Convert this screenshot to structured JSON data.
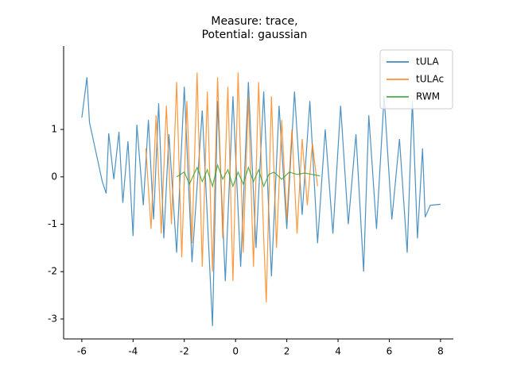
{
  "chart_data": {
    "type": "line",
    "title": [
      "Measure: trace,",
      "Potential: gaussian"
    ],
    "xlim": [
      -6.71,
      8.5
    ],
    "ylim": [
      -3.42,
      2.76
    ],
    "xticks": [
      -6,
      -4,
      -2,
      0,
      2,
      4,
      6,
      8
    ],
    "yticks": [
      -3,
      -2,
      -1,
      0,
      1
    ],
    "legend": "upper right",
    "series": [
      {
        "name": "tULA",
        "color": "#1f77b4",
        "x": [
          -6.0,
          -5.8,
          -5.7,
          -5.4,
          -5.2,
          -5.05,
          -4.95,
          -4.75,
          -4.55,
          -4.4,
          -4.2,
          -4.0,
          -3.85,
          -3.6,
          -3.4,
          -3.2,
          -3.0,
          -2.8,
          -2.6,
          -2.3,
          -2.0,
          -1.7,
          -1.3,
          -0.9,
          -0.7,
          -0.4,
          -0.1,
          0.2,
          0.5,
          0.8,
          1.1,
          1.4,
          1.7,
          2.0,
          2.3,
          2.6,
          2.9,
          3.2,
          3.5,
          3.8,
          4.1,
          4.4,
          4.7,
          5.0,
          5.2,
          5.5,
          5.8,
          6.1,
          6.4,
          6.7,
          6.9,
          7.1,
          7.3,
          7.4,
          7.6,
          8.0
        ],
        "values": [
          1.25,
          2.1,
          1.15,
          0.4,
          -0.1,
          -0.35,
          0.92,
          -0.05,
          0.95,
          -0.55,
          0.75,
          -1.25,
          1.1,
          -0.6,
          1.2,
          -0.9,
          1.55,
          -1.3,
          0.9,
          -1.6,
          1.9,
          -1.8,
          1.4,
          -3.15,
          1.6,
          -2.2,
          1.7,
          -1.9,
          2.0,
          -1.5,
          1.8,
          -2.1,
          1.5,
          -1.1,
          1.8,
          -0.8,
          1.6,
          -1.4,
          1.0,
          -1.2,
          1.5,
          -1.0,
          0.9,
          -2.0,
          1.3,
          -1.1,
          1.7,
          -0.9,
          0.8,
          -1.6,
          1.6,
          -1.3,
          0.6,
          -0.85,
          -0.6,
          -0.58
        ]
      },
      {
        "name": "tULAc",
        "color": "#ff7f0e",
        "x": [
          -3.5,
          -3.3,
          -3.1,
          -2.9,
          -2.7,
          -2.5,
          -2.3,
          -2.1,
          -1.9,
          -1.7,
          -1.5,
          -1.3,
          -1.1,
          -0.9,
          -0.7,
          -0.5,
          -0.3,
          -0.1,
          0.1,
          0.3,
          0.5,
          0.7,
          0.9,
          1.1,
          1.2,
          1.4,
          1.6,
          1.8,
          2.0,
          2.2,
          2.4,
          2.6,
          2.8,
          3.0,
          3.2
        ],
        "values": [
          0.6,
          -1.1,
          1.3,
          -1.2,
          1.5,
          -1.0,
          2.0,
          -1.7,
          1.6,
          -1.4,
          2.2,
          -1.9,
          1.8,
          -2.0,
          2.1,
          -1.3,
          1.9,
          -2.2,
          2.2,
          -1.6,
          1.7,
          -1.9,
          2.0,
          -1.3,
          -2.65,
          1.7,
          -1.5,
          1.2,
          -0.9,
          1.0,
          -1.2,
          0.8,
          -0.6,
          0.7,
          -0.2
        ]
      },
      {
        "name": "RWM",
        "color": "#2ca02c",
        "x": [
          -2.3,
          -2.0,
          -1.8,
          -1.5,
          -1.3,
          -1.1,
          -0.9,
          -0.7,
          -0.5,
          -0.3,
          -0.1,
          0.1,
          0.3,
          0.5,
          0.7,
          0.9,
          1.1,
          1.3,
          1.5,
          1.8,
          2.1,
          2.4,
          2.7,
          3.0,
          3.3
        ],
        "values": [
          0.0,
          0.1,
          -0.15,
          0.2,
          -0.1,
          0.15,
          -0.2,
          0.25,
          -0.05,
          0.15,
          -0.2,
          0.1,
          -0.15,
          0.2,
          -0.1,
          0.15,
          -0.2,
          0.05,
          0.1,
          -0.05,
          0.1,
          0.05,
          0.08,
          0.05,
          0.02
        ]
      }
    ]
  }
}
